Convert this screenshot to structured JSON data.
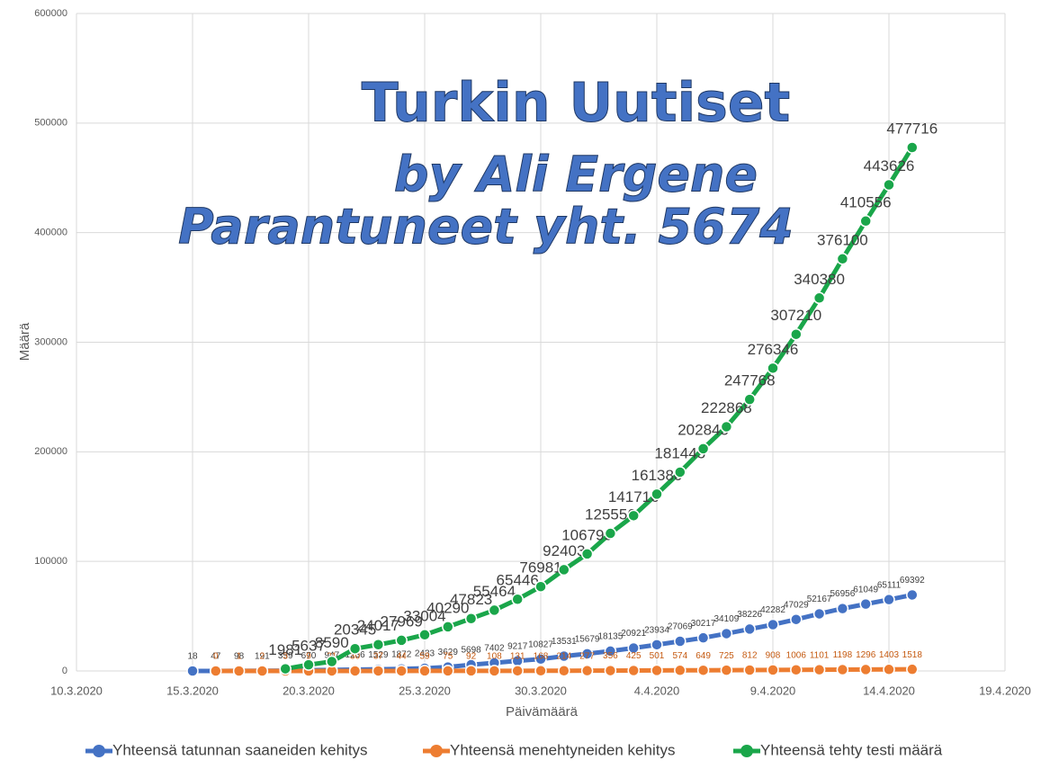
{
  "chart_data": {
    "type": "line",
    "overlay_texts": [
      "Turkin Uutiset",
      "by Ali Ergene",
      "Parantuneet yht. 5674"
    ],
    "xlabel": "Päivämäärä",
    "ylabel": "Määrä",
    "xlim": [
      "10.3.2020",
      "19.4.2020"
    ],
    "xticks": [
      "10.3.2020",
      "15.3.2020",
      "20.3.2020",
      "25.3.2020",
      "30.3.2020",
      "4.4.2020",
      "9.4.2020",
      "14.4.2020",
      "19.4.2020"
    ],
    "ylim": [
      0,
      600000
    ],
    "yticks": [
      0,
      100000,
      200000,
      300000,
      400000,
      500000,
      600000
    ],
    "grid": true,
    "series": [
      {
        "name": "Yhteensä tatunnan saaneiden kehitys",
        "color": "#4472c4",
        "x": [
          "15.3.2020",
          "16.3.2020",
          "17.3.2020",
          "18.3.2020",
          "19.3.2020",
          "20.3.2020",
          "21.3.2020",
          "22.3.2020",
          "23.3.2020",
          "24.3.2020",
          "25.3.2020",
          "26.3.2020",
          "27.3.2020",
          "28.3.2020",
          "29.3.2020",
          "30.3.2020",
          "31.3.2020",
          "1.4.2020",
          "2.4.2020",
          "3.4.2020",
          "4.4.2020",
          "5.4.2020",
          "6.4.2020",
          "7.4.2020",
          "8.4.2020",
          "9.4.2020",
          "10.4.2020",
          "11.4.2020",
          "12.4.2020",
          "13.4.2020",
          "14.4.2020",
          "15.4.2020"
        ],
        "values": [
          18,
          47,
          98,
          191,
          359,
          670,
          947,
          1236,
          1529,
          1872,
          2433,
          3629,
          5698,
          7402,
          9217,
          10827,
          13531,
          15679,
          18135,
          20921,
          23934,
          27069,
          30217,
          34109,
          38226,
          42282,
          47029,
          52167,
          56956,
          61049,
          65111,
          69392
        ]
      },
      {
        "name": "Yhteensä menehtyneiden kehitys",
        "color": "#ed7d31",
        "x": [
          "16.3.2020",
          "17.3.2020",
          "18.3.2020",
          "19.3.2020",
          "20.3.2020",
          "21.3.2020",
          "22.3.2020",
          "23.3.2020",
          "24.3.2020",
          "25.3.2020",
          "26.3.2020",
          "27.3.2020",
          "28.3.2020",
          "29.3.2020",
          "30.3.2020",
          "31.3.2020",
          "1.4.2020",
          "2.4.2020",
          "3.4.2020",
          "4.4.2020",
          "5.4.2020",
          "6.4.2020",
          "7.4.2020",
          "8.4.2020",
          "9.4.2020",
          "10.4.2020",
          "11.4.2020",
          "12.4.2020",
          "13.4.2020",
          "14.4.2020",
          "15.4.2020"
        ],
        "values": [
          0,
          1,
          2,
          3,
          9,
          21,
          30,
          37,
          44,
          59,
          75,
          92,
          108,
          131,
          168,
          214,
          277,
          356,
          425,
          501,
          574,
          649,
          725,
          812,
          908,
          1006,
          1101,
          1198,
          1296,
          1403,
          1518
        ]
      },
      {
        "name": "Yhteensä tehty testi määrä",
        "color": "#1aa64a",
        "x": [
          "19.3.2020",
          "20.3.2020",
          "21.3.2020",
          "22.3.2020",
          "23.3.2020",
          "24.3.2020",
          "25.3.2020",
          "26.3.2020",
          "27.3.2020",
          "28.3.2020",
          "29.3.2020",
          "30.3.2020",
          "31.3.2020",
          "1.4.2020",
          "2.4.2020",
          "3.4.2020",
          "4.4.2020",
          "5.4.2020",
          "6.4.2020",
          "7.4.2020",
          "8.4.2020",
          "9.4.2020",
          "10.4.2020",
          "11.4.2020",
          "12.4.2020",
          "13.4.2020",
          "14.4.2020",
          "15.4.2020"
        ],
        "values": [
          1981,
          5637,
          8590,
          20345,
          24017,
          27969,
          33004,
          40290,
          47823,
          55464,
          65446,
          76981,
          92403,
          106799,
          125556,
          141716,
          161380,
          181445,
          202845,
          222868,
          247768,
          276346,
          307210,
          340380,
          376100,
          410556,
          443626,
          477716
        ]
      }
    ]
  }
}
